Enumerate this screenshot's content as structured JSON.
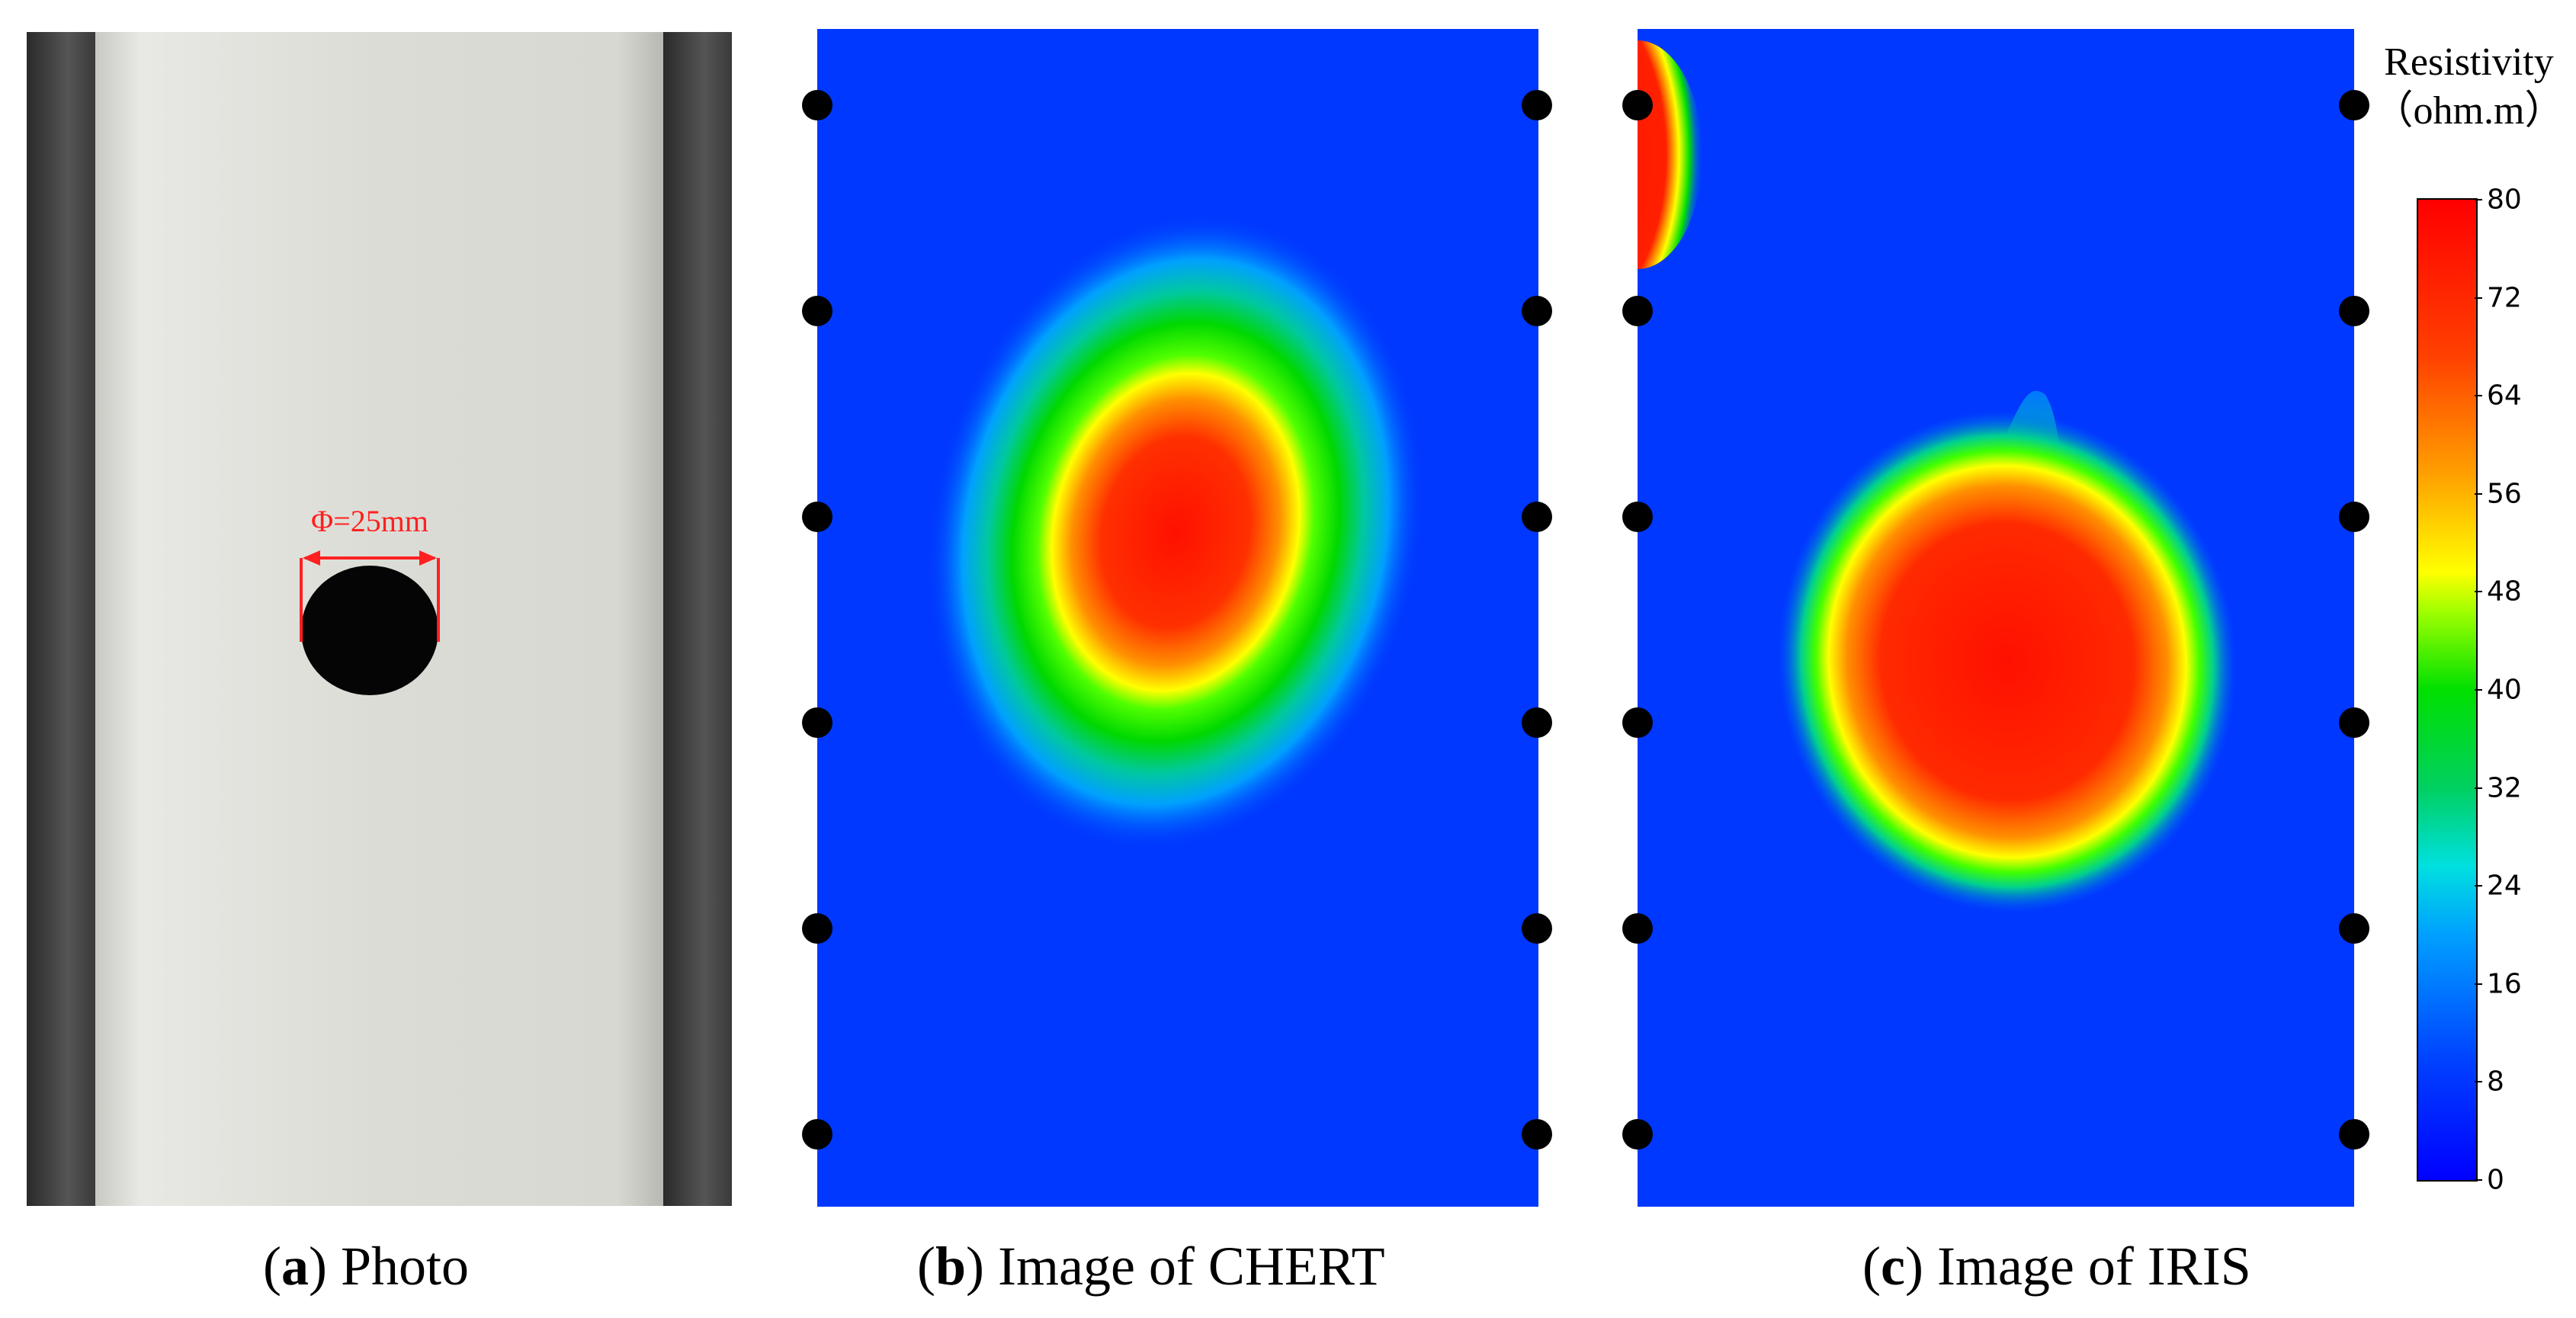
{
  "panels": {
    "a": {
      "label": "a",
      "caption": "Photo",
      "annotation": "Φ=25mm"
    },
    "b": {
      "label": "b",
      "caption": "Image of CHERT"
    },
    "c": {
      "label": "c",
      "caption": "Image of IRIS"
    }
  },
  "colorbar": {
    "title": "Resistivity",
    "unit": "（ohm.m）",
    "ticks": [
      "80",
      "72",
      "64",
      "56",
      "48",
      "40",
      "32",
      "24",
      "16",
      "8",
      "0"
    ],
    "colors": {
      "low": "#0000ff",
      "mid": "#00e000",
      "high": "#ff0000"
    }
  }
}
